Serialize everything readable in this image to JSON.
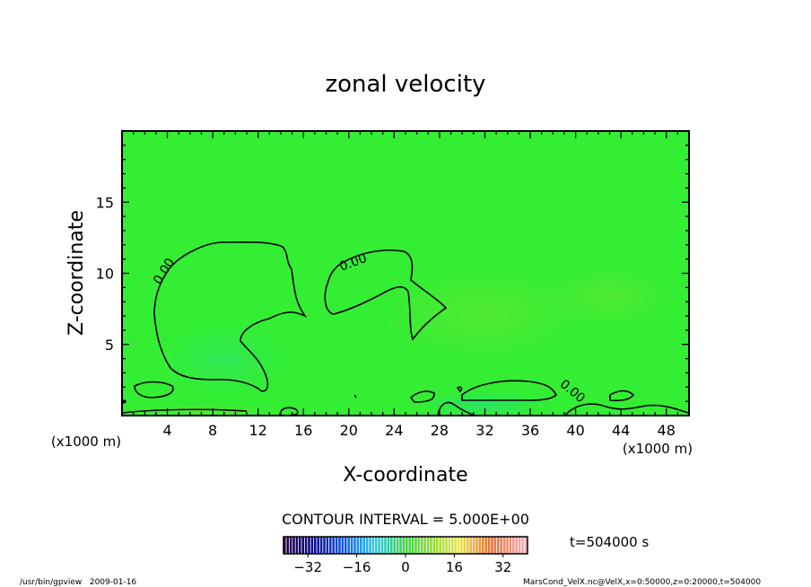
{
  "chart_data": {
    "type": "heatmap",
    "title": "zonal velocity",
    "xlabel": "X-coordinate",
    "ylabel": "Z-coordinate",
    "x_unit_label": "(x1000 m)",
    "x_unit_label_right": "(x1000 m)",
    "xlim": [
      0,
      50
    ],
    "ylim": [
      0,
      20
    ],
    "x_ticks": [
      4,
      8,
      12,
      16,
      20,
      24,
      28,
      32,
      36,
      40,
      44,
      48
    ],
    "y_ticks": [
      5,
      10,
      15
    ],
    "contour_interval_label": "CONTOUR INTERVAL = 5.000E+00",
    "contour_labels": [
      {
        "text": "0.00",
        "x": 4.0,
        "y": 10.0
      },
      {
        "text": "0.00",
        "x": 20.5,
        "y": 10.5
      },
      {
        "text": "0.00",
        "x": 39.5,
        "y": 1.5
      }
    ],
    "colorbar": {
      "range": [
        -40,
        40
      ],
      "ticks": [
        -32,
        -16,
        0,
        16,
        32
      ]
    },
    "field_color": "#33ee33",
    "time_label": "t=504000 s",
    "footer_left": "/usr/bin/gpview   2009-01-16",
    "footer_right": "MarsCond_VelX.nc@VelX,x=0:50000,z=0:20000,t=504000"
  }
}
